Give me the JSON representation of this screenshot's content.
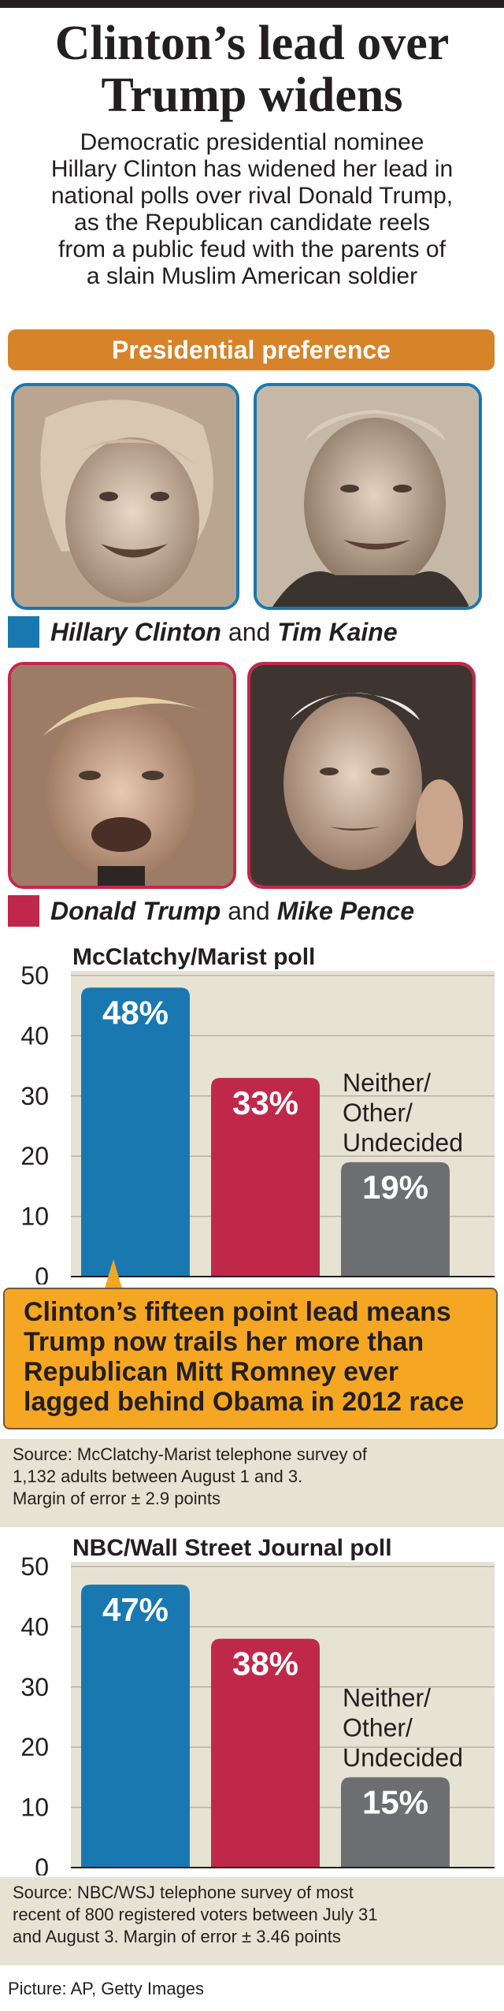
{
  "headline": [
    "Clinton’s lead over",
    "Trump widens"
  ],
  "intro": [
    "Democratic presidential nominee",
    "Hillary Clinton has widened her lead in",
    "national polls over rival Donald Trump,",
    "as the Republican candidate reels",
    "from a public feud with the parents of",
    "a slain Muslim American soldier"
  ],
  "banner": "Presidential preference",
  "portraits": [
    "Hillary Clinton",
    "Tim Kaine",
    "Donald Trump",
    "Mike Pence"
  ],
  "democrats": {
    "president": "Hillary Clinton",
    "vp": "Tim Kaine",
    "and": "and",
    "color": "#1a78b0"
  },
  "republicans": {
    "president": "Donald Trump",
    "vp": "Mike Pence",
    "and": "and",
    "color": "#c0284b"
  },
  "callout": [
    "Clinton’s fifteen point lead means",
    "Trump now trails her more than",
    "Republican Mitt Romney ever",
    "lagged behind Obama in 2012 race"
  ],
  "source1": [
    "Source: McClatchy-Marist telephone survey of",
    "1,132 adults between August 1 and 3.",
    "Margin of error ± 2.9 points"
  ],
  "source2": [
    "Source: NBC/WSJ telephone survey of most",
    "recent of 800 registered voters between July 31",
    "and August 3. Margin of error ± 3.46 points"
  ],
  "credit": "Picture: AP, Getty Images",
  "chart_data": [
    {
      "type": "bar",
      "title": "McClatchy/Marist poll",
      "categories": [
        "Clinton",
        "Trump",
        "Neither/Other/Undecided"
      ],
      "values": [
        48,
        33,
        19
      ],
      "value_labels": [
        "48%",
        "33%",
        "19%"
      ],
      "other_label": [
        "Neither/",
        "Other/",
        "Undecided"
      ],
      "colors": [
        "#1a78b0",
        "#c0284b",
        "#6d6e71"
      ],
      "yticks": [
        0,
        10,
        20,
        30,
        40,
        50
      ],
      "ylim": [
        0,
        50
      ],
      "xlabel": "",
      "ylabel": ""
    },
    {
      "type": "bar",
      "title": "NBC/Wall Street Journal poll",
      "categories": [
        "Clinton",
        "Trump",
        "Neither/Other/Undecided"
      ],
      "values": [
        47,
        38,
        15
      ],
      "value_labels": [
        "47%",
        "38%",
        "15%"
      ],
      "other_label": [
        "Neither/",
        "Other/",
        "Undecided"
      ],
      "colors": [
        "#1a78b0",
        "#c0284b",
        "#6d6e71"
      ],
      "yticks": [
        0,
        10,
        20,
        30,
        40,
        50
      ],
      "ylim": [
        0,
        50
      ],
      "xlabel": "",
      "ylabel": ""
    }
  ]
}
